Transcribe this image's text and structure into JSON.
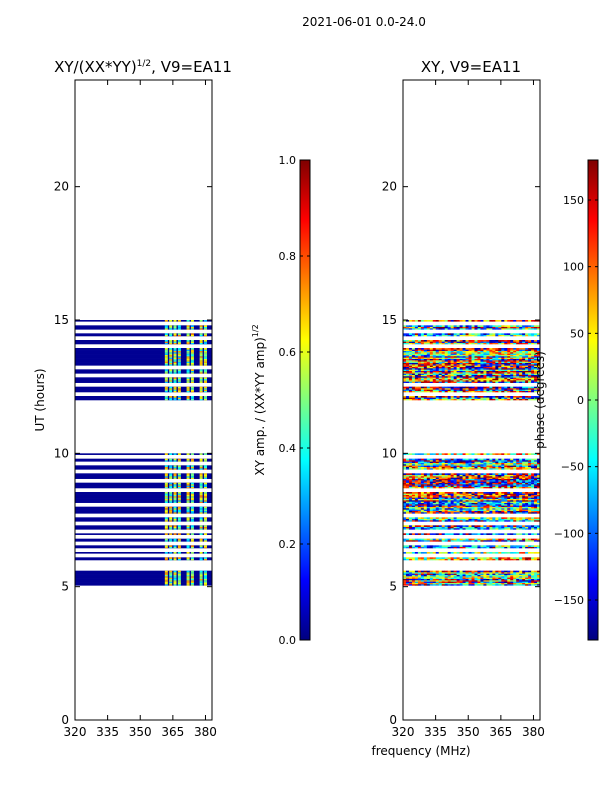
{
  "chart_data": {
    "super_title": "2021-06-01 0.0-24.0",
    "xlabel": "frequency (MHz)",
    "panels": [
      {
        "id": "amp",
        "type": "heatmap",
        "title": "XY/(XX*YY)",
        "title_exponent": "1/2",
        "title_suffix": ", V9=EA11",
        "ylabel": "UT (hours)",
        "xlim": [
          320,
          383
        ],
        "ylim": [
          0,
          24
        ],
        "x_ticks": [
          320,
          335,
          350,
          365,
          380
        ],
        "y_ticks": [
          0,
          5,
          10,
          15,
          20
        ],
        "colorbar": {
          "label": "XY amp. / (XX*YY amp)",
          "label_exponent": "1/2",
          "range": [
            0.0,
            1.0
          ],
          "ticks": [
            "0.0",
            "0.2",
            "0.4",
            "0.6",
            "0.8",
            "1.0"
          ],
          "tick_values": [
            0.0,
            0.2,
            0.4,
            0.6,
            0.8,
            1.0
          ]
        },
        "data_blocks": [
          {
            "ut_start": 5.05,
            "ut_end": 5.6
          },
          {
            "ut_start": 6.0,
            "ut_end": 10.0
          },
          {
            "ut_start": 12.0,
            "ut_end": 15.0
          }
        ],
        "gaps_ut": [
          6.15,
          6.35,
          6.6,
          6.85,
          7.05,
          7.35,
          7.65,
          8.05,
          8.6,
          8.95,
          9.3,
          9.6,
          9.85,
          12.2,
          12.55,
          12.9,
          13.2,
          14.0,
          14.3,
          14.55,
          14.85
        ],
        "bright_channels_mhz": [
          362,
          364,
          366,
          368,
          372,
          374,
          378,
          380
        ],
        "background_value": 0.02
      },
      {
        "id": "phase",
        "type": "heatmap",
        "title": "XY, V9=EA11",
        "ylabel": "",
        "xlim": [
          320,
          383
        ],
        "ylim": [
          0,
          24
        ],
        "x_ticks": [
          320,
          335,
          350,
          365,
          380
        ],
        "y_ticks": [
          0,
          5,
          10,
          15,
          20
        ],
        "colorbar": {
          "label": "phase (degrees)",
          "range": [
            -180,
            180
          ],
          "ticks": [
            "−150",
            "−100",
            "−50",
            "0",
            "50",
            "100",
            "150"
          ],
          "tick_values": [
            -150,
            -100,
            -50,
            0,
            50,
            100,
            150
          ]
        },
        "data_blocks": [
          {
            "ut_start": 5.05,
            "ut_end": 5.6
          },
          {
            "ut_start": 6.0,
            "ut_end": 10.0
          },
          {
            "ut_start": 12.0,
            "ut_end": 15.0
          }
        ],
        "gaps_ut": [
          6.15,
          6.35,
          6.6,
          6.85,
          7.05,
          7.35,
          7.65,
          8.6,
          9.3,
          9.85,
          12.2,
          12.55,
          14.0,
          14.3,
          14.55,
          14.85
        ]
      }
    ]
  },
  "colors": {
    "axis": "#000000",
    "background": "#ffffff",
    "jet": [
      "#00007f",
      "#0000ff",
      "#007fff",
      "#00ffff",
      "#7fff7f",
      "#ffff00",
      "#ff7f00",
      "#ff0000",
      "#7f0000"
    ]
  }
}
